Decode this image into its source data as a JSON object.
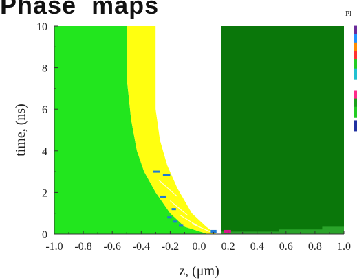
{
  "header": {
    "title": "Phase  maps"
  },
  "legend": {
    "title_fragment": "Pl"
  },
  "chart_data": {
    "type": "heatmap",
    "title": "Phase  maps",
    "xlabel": "z, (μm)",
    "ylabel": "time, (ns)",
    "xlim": [
      -1.0,
      1.0
    ],
    "ylim": [
      0,
      10
    ],
    "x_ticks": [
      "-1.0",
      "-0.8",
      "-0.6",
      "-0.4",
      "-0.2",
      "0.0",
      "0.2",
      "0.4",
      "0.6",
      "0.8",
      "1.0"
    ],
    "y_ticks": [
      "0",
      "2",
      "4",
      "6",
      "8",
      "10"
    ],
    "x_tick_values": [
      -1.0,
      -0.8,
      -0.6,
      -0.4,
      -0.2,
      0.0,
      0.2,
      0.4,
      0.6,
      0.8,
      1.0
    ],
    "y_tick_values": [
      0,
      2,
      4,
      6,
      8,
      10
    ],
    "colors": {
      "left_region": "#22e61e",
      "yellow_band": "#ffff10",
      "white_band": "#ffffff",
      "right_region": "#0a770a",
      "bottom_strip": "#2aa42a",
      "accent_blue": "#1e7bd6",
      "accent_magenta": "#d8188a"
    },
    "regions": [
      {
        "name": "left-green",
        "color": "#22e61e",
        "points": [
          [
            -1.0,
            0
          ],
          [
            -1.0,
            10
          ],
          [
            -0.5,
            10
          ],
          [
            -0.5,
            7.5
          ],
          [
            -0.47,
            5.5
          ],
          [
            -0.43,
            4.0
          ],
          [
            -0.38,
            3.0
          ],
          [
            -0.3,
            2.0
          ],
          [
            -0.2,
            1.0
          ],
          [
            -0.1,
            0.35
          ],
          [
            0.06,
            0.0
          ]
        ]
      },
      {
        "name": "yellow-band",
        "color": "#ffff10",
        "points": [
          [
            -0.5,
            10
          ],
          [
            -0.3,
            10
          ],
          [
            -0.3,
            6.0
          ],
          [
            -0.27,
            4.5
          ],
          [
            -0.22,
            3.3
          ],
          [
            -0.15,
            2.2
          ],
          [
            -0.05,
            1.0
          ],
          [
            0.05,
            0.35
          ],
          [
            0.12,
            0.0
          ],
          [
            0.06,
            0.0
          ],
          [
            -0.1,
            0.35
          ],
          [
            -0.2,
            1.0
          ],
          [
            -0.3,
            2.0
          ],
          [
            -0.38,
            3.0
          ],
          [
            -0.43,
            4.0
          ],
          [
            -0.47,
            5.5
          ],
          [
            -0.5,
            7.5
          ]
        ]
      },
      {
        "name": "white-band",
        "color": "#ffffff",
        "points": [
          [
            -0.3,
            10
          ],
          [
            0.15,
            10
          ],
          [
            0.15,
            0.0
          ],
          [
            0.12,
            0.0
          ],
          [
            0.05,
            0.35
          ],
          [
            -0.05,
            1.0
          ],
          [
            -0.15,
            2.2
          ],
          [
            -0.22,
            3.3
          ],
          [
            -0.27,
            4.5
          ],
          [
            -0.3,
            6.0
          ]
        ]
      },
      {
        "name": "dark-green",
        "color": "#0a770a",
        "points": [
          [
            0.15,
            0
          ],
          [
            0.15,
            10
          ],
          [
            1.0,
            10
          ],
          [
            1.0,
            0
          ]
        ]
      },
      {
        "name": "bottom-strip",
        "color": "#2aa42a",
        "points": [
          [
            0.15,
            0.0
          ],
          [
            1.0,
            0.0
          ],
          [
            1.0,
            0.35
          ],
          [
            0.85,
            0.35
          ],
          [
            0.85,
            0.22
          ],
          [
            0.55,
            0.22
          ],
          [
            0.55,
            0.12
          ],
          [
            0.15,
            0.12
          ]
        ]
      }
    ],
    "marks": [
      {
        "x": -0.32,
        "y": 2.95,
        "w": 0.05,
        "h": 0.1,
        "color": "#1e7bd6"
      },
      {
        "x": -0.25,
        "y": 2.8,
        "w": 0.05,
        "h": 0.1,
        "color": "#1e7bd6"
      },
      {
        "x": -0.27,
        "y": 1.75,
        "w": 0.04,
        "h": 0.1,
        "color": "#1e7bd6"
      },
      {
        "x": -0.19,
        "y": 1.15,
        "w": 0.03,
        "h": 0.1,
        "color": "#1e7bd6"
      },
      {
        "x": -0.22,
        "y": 0.75,
        "w": 0.03,
        "h": 0.1,
        "color": "#1e7bd6"
      },
      {
        "x": -0.18,
        "y": 0.55,
        "w": 0.03,
        "h": 0.1,
        "color": "#1e7bd6"
      },
      {
        "x": -0.14,
        "y": 0.35,
        "w": 0.03,
        "h": 0.1,
        "color": "#1e7bd6"
      },
      {
        "x": 0.08,
        "y": 0.05,
        "w": 0.04,
        "h": 0.15,
        "color": "#1e7bd6"
      },
      {
        "x": 0.17,
        "y": 0.05,
        "w": 0.05,
        "h": 0.15,
        "color": "#d8188a"
      }
    ],
    "stripes": [
      {
        "x1": -0.28,
        "y1": 2.6,
        "x2": -0.15,
        "y2": 1.8
      },
      {
        "x1": -0.2,
        "y1": 1.6,
        "x2": -0.08,
        "y2": 0.9
      },
      {
        "x1": -0.13,
        "y1": 0.9,
        "x2": 0.0,
        "y2": 0.35
      },
      {
        "x1": -0.05,
        "y1": 0.5,
        "x2": 0.08,
        "y2": 0.1
      }
    ],
    "legend_swatches": [
      {
        "y": 9.75,
        "color": "#6a2a9a"
      },
      {
        "y": 9.35,
        "color": "#1e90ff"
      },
      {
        "y": 8.95,
        "color": "#ff8c00"
      },
      {
        "y": 8.55,
        "color": "#ff3030"
      },
      {
        "y": 8.15,
        "color": "#22cc22"
      },
      {
        "y": 7.7,
        "color": "#20c0d0"
      },
      {
        "y": 6.65,
        "color": "#ff2a8a"
      },
      {
        "y": 6.25,
        "color": "#1aa01a"
      },
      {
        "y": 5.85,
        "color": "#22cc22"
      },
      {
        "y": 5.2,
        "color": "#2030a0"
      }
    ]
  }
}
